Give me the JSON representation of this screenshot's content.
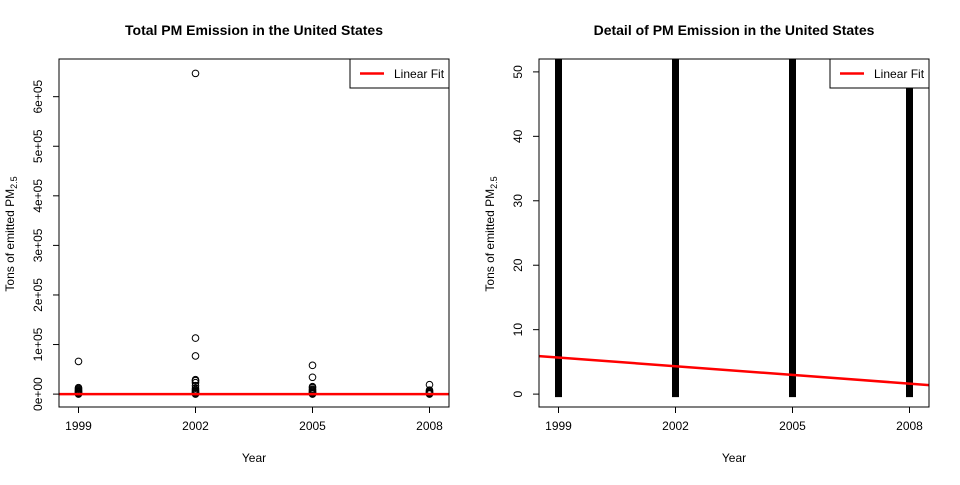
{
  "chart_data": [
    {
      "type": "scatter",
      "title": "Total PM Emission in the United States",
      "xlabel": "Year",
      "ylabel_main": "Tons of emitted PM",
      "ylabel_sub": "2.5",
      "x_ticks": [
        "1999",
        "2002",
        "2005",
        "2008"
      ],
      "y_ticks": [
        "0e+00",
        "1e+05",
        "2e+05",
        "3e+05",
        "4e+05",
        "5e+05",
        "6e+05"
      ],
      "xlim": [
        1998.5,
        2008.5
      ],
      "ylim": [
        -26000,
        676000
      ],
      "legend": {
        "label": "Linear Fit",
        "position": "top-right",
        "color": "#ff0000"
      },
      "series": [
        {
          "x": 1999,
          "y": [
            0,
            1000,
            2500,
            4000,
            5500,
            7000,
            9000,
            11000,
            13000,
            66000
          ]
        },
        {
          "x": 2002,
          "y": [
            0,
            1500,
            3000,
            5000,
            7000,
            9000,
            12000,
            17000,
            23000,
            27000,
            29000,
            77000,
            113000,
            647000
          ]
        },
        {
          "x": 2005,
          "y": [
            0,
            1000,
            2500,
            4000,
            6000,
            8000,
            10000,
            13000,
            15000,
            34000,
            58000
          ]
        },
        {
          "x": 2008,
          "y": [
            0,
            1000,
            2500,
            4000,
            6000,
            8000,
            19000
          ]
        }
      ],
      "fit_line": {
        "x": [
          1998.5,
          2008.5
        ],
        "y": [
          5.9,
          1.4
        ],
        "color": "#ff0000"
      },
      "point_color": "#000000"
    },
    {
      "type": "scatter",
      "title": "Detail of PM Emission in the United States",
      "xlabel": "Year",
      "ylabel_main": "Tons of emitted PM",
      "ylabel_sub": "2.5",
      "x_ticks": [
        "1999",
        "2002",
        "2005",
        "2008"
      ],
      "y_ticks": [
        "0",
        "10",
        "20",
        "30",
        "40",
        "50"
      ],
      "xlim": [
        1998.5,
        2008.5
      ],
      "ylim": [
        -2,
        52
      ],
      "legend": {
        "label": "Linear Fit",
        "position": "top-right",
        "color": "#ff0000"
      },
      "bands": [
        {
          "x": 1999,
          "y_from": 0,
          "y_to": 52
        },
        {
          "x": 2002,
          "y_from": 0,
          "y_to": 52
        },
        {
          "x": 2005,
          "y_from": 0,
          "y_to": 52
        },
        {
          "x": 2008,
          "y_from": 0,
          "y_to": 47.5
        }
      ],
      "fit_line": {
        "x": [
          1998.5,
          2008.5
        ],
        "y": [
          5.9,
          1.4
        ],
        "color": "#ff0000"
      },
      "point_color": "#000000"
    }
  ]
}
